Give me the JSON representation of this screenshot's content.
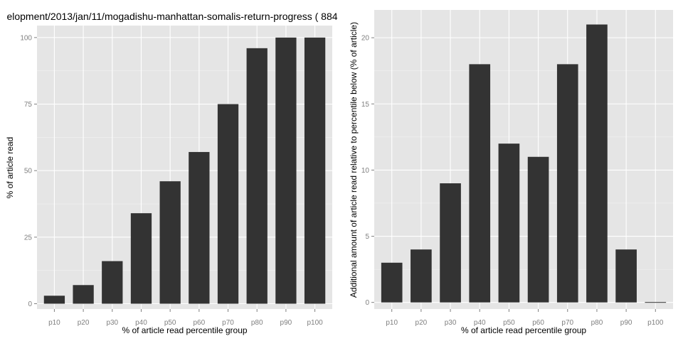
{
  "colors": {
    "panel_background": "#e5e5e5",
    "grid_major": "#ffffff",
    "grid_minor": "#f2f2f2",
    "bar_fill": "#333333",
    "tick_text": "#7f7f7f"
  },
  "chart_data": [
    {
      "type": "bar",
      "title": "elopment/2013/jan/11/mogadishu-manhattan-somalis-return-progress ( 884",
      "xlabel": "% of article read percentile group",
      "ylabel": "% of article read",
      "categories": [
        "p10",
        "p20",
        "p30",
        "p40",
        "p50",
        "p60",
        "p70",
        "p80",
        "p90",
        "p100"
      ],
      "values": [
        3,
        7,
        16,
        34,
        46,
        57,
        75,
        96,
        100,
        100
      ],
      "ylim": [
        -2,
        104.5
      ],
      "yticks": [
        0,
        25,
        50,
        75,
        100
      ],
      "ytick_labels": [
        "0",
        "25",
        "50",
        "75",
        "100"
      ],
      "grid": true,
      "legend": "none"
    },
    {
      "type": "bar",
      "title": "",
      "xlabel": "% of article read percentile group",
      "ylabel": "Additional amount of article read relative to percentile below (% of article)",
      "categories": [
        "p10",
        "p20",
        "p30",
        "p40",
        "p50",
        "p60",
        "p70",
        "p80",
        "p90",
        "p100"
      ],
      "values": [
        3,
        4,
        9,
        18,
        12,
        11,
        18,
        21,
        4,
        0
      ],
      "ylim": [
        -0.5,
        22.1
      ],
      "yticks": [
        0,
        5,
        10,
        15,
        20
      ],
      "ytick_labels": [
        "0",
        "5",
        "10",
        "15",
        "20"
      ],
      "grid": true,
      "legend": "none"
    }
  ]
}
